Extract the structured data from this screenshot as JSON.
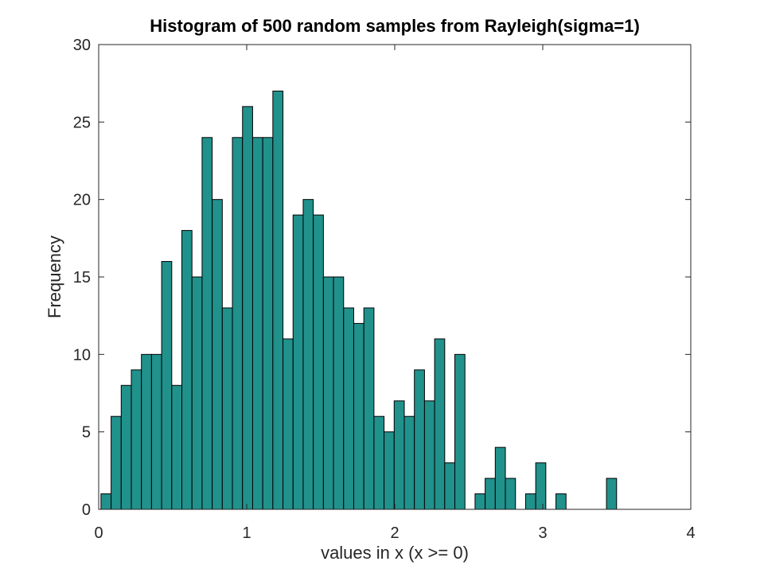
{
  "chart_data": {
    "type": "bar",
    "title": "Histogram of 500 random samples from Rayleigh(sigma=1)",
    "xlabel": "values in x (x >= 0)",
    "ylabel": "Frequency",
    "xlim": [
      0,
      4
    ],
    "ylim": [
      0,
      30
    ],
    "xticks": [
      0,
      1,
      2,
      3,
      4
    ],
    "yticks": [
      0,
      5,
      10,
      15,
      20,
      25,
      30
    ],
    "grid": false,
    "bar_color": "#21918c",
    "bar_edge_color": "#000000",
    "bins": {
      "start": 0.0155,
      "width": 0.0683,
      "counts": [
        1,
        6,
        8,
        9,
        10,
        10,
        16,
        8,
        18,
        15,
        24,
        20,
        13,
        24,
        26,
        24,
        24,
        27,
        11,
        19,
        20,
        19,
        15,
        15,
        13,
        12,
        13,
        6,
        5,
        7,
        6,
        9,
        7,
        11,
        3,
        10,
        0,
        1,
        2,
        4,
        2,
        0,
        1,
        3,
        0,
        1,
        0,
        0,
        0,
        0,
        2
      ]
    }
  }
}
